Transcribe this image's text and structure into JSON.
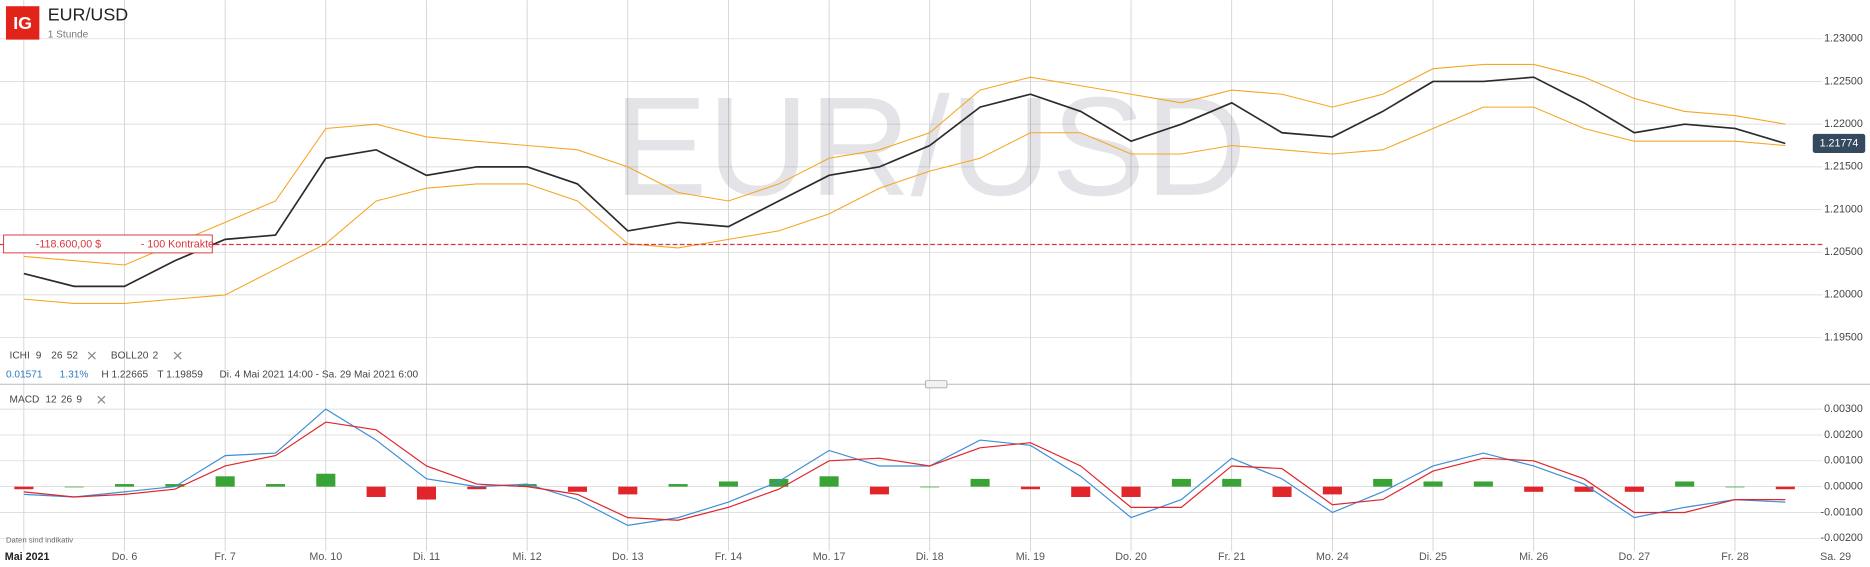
{
  "header": {
    "logo": "IG",
    "symbol": "EUR/USD",
    "interval": "1 Stunde",
    "watermark": "EUR/USD"
  },
  "indicators": [
    {
      "name": "ICHI",
      "params": [
        9,
        26,
        52
      ]
    },
    {
      "name": "BOLL",
      "params": [
        20,
        2
      ]
    }
  ],
  "stats": {
    "change": "0.01571",
    "change_pct": "1.31%",
    "high": "H 1.22665",
    "low": "T 1.19859",
    "range": "Di. 4 Mai 2021 14:00 - Sa. 29 Mai 2021 6:00"
  },
  "macd_indicator": {
    "name": "MACD",
    "params": [
      12,
      26,
      9
    ]
  },
  "footnote": "Daten sind indikativ",
  "chart_data": [
    {
      "type": "line",
      "series": [
        {
          "color": "#2b2b2b",
          "values": [
            1.2025,
            1.201,
            1.201,
            1.204,
            1.2065,
            1.207,
            1.216,
            1.217,
            1.214,
            1.215,
            1.215,
            1.213,
            1.2075,
            1.2085,
            1.208,
            1.211,
            1.214,
            1.215,
            1.2175,
            1.222,
            1.2235,
            1.2215,
            1.218,
            1.22,
            1.2225,
            1.219,
            1.2185,
            1.2215,
            1.225,
            1.225,
            1.2255,
            1.2225,
            1.219,
            1.22,
            1.2195,
            1.21774,
            null
          ]
        },
        {
          "color": "#f5a623",
          "values": [
            1.2045,
            1.204,
            1.2035,
            1.206,
            1.2085,
            1.211,
            1.2195,
            1.22,
            1.2185,
            1.218,
            1.2175,
            1.217,
            1.215,
            1.212,
            1.211,
            1.213,
            1.216,
            1.217,
            1.219,
            1.224,
            1.2255,
            1.2245,
            1.2235,
            1.2225,
            1.224,
            1.2235,
            1.222,
            1.2235,
            1.2265,
            1.227,
            1.227,
            1.2255,
            1.223,
            1.2215,
            1.221,
            1.22,
            null
          ]
        },
        {
          "color": "#f5a623",
          "values": [
            1.1995,
            1.199,
            1.199,
            1.1995,
            1.2,
            1.203,
            1.206,
            1.211,
            1.2125,
            1.213,
            1.213,
            1.211,
            1.206,
            1.2055,
            1.2065,
            1.2075,
            1.2095,
            1.2125,
            1.2145,
            1.216,
            1.219,
            1.219,
            1.2165,
            1.2165,
            1.2175,
            1.217,
            1.2165,
            1.217,
            1.2195,
            1.222,
            1.222,
            1.2195,
            1.218,
            1.218,
            1.218,
            1.2175,
            null
          ]
        }
      ],
      "ylim": [
        1.194,
        1.232
      ],
      "yticks": [
        {
          "value": 1.195,
          "label": "1.19500"
        },
        {
          "value": 1.2,
          "label": "1.20000"
        },
        {
          "value": 1.205,
          "label": "1.20500"
        },
        {
          "value": 1.21,
          "label": "1.21000"
        },
        {
          "value": 1.215,
          "label": "1.21500"
        },
        {
          "value": 1.22,
          "label": "1.22000"
        },
        {
          "value": 1.225,
          "label": "1.22500"
        },
        {
          "value": 1.23,
          "label": "1.23000"
        }
      ],
      "grid": true,
      "last_price": {
        "value": 1.21774,
        "label": "1.21774",
        "color": "#34495e"
      },
      "position": {
        "level": 1.2059,
        "pnl": "-118.600,00 $",
        "size": "- 100 Kontrakte",
        "color": "#d9363e"
      }
    },
    {
      "type": "macd",
      "categories": [
        "Mai 2021",
        null,
        "Do. 6",
        null,
        "Fr. 7",
        null,
        "Mo. 10",
        null,
        "Di. 11",
        null,
        "Mi. 12",
        null,
        "Do. 13",
        null,
        "Fr. 14",
        null,
        "Mo. 17",
        null,
        "Di. 18",
        null,
        "Mi. 19",
        null,
        "Do. 20",
        null,
        "Fr. 21",
        null,
        "Mo. 24",
        null,
        "Di. 25",
        null,
        "Mi. 26",
        null,
        "Do. 27",
        null,
        "Fr. 28",
        null,
        "Sa. 29"
      ],
      "histogram": {
        "up_color": "#3aa335",
        "down_color": "#e0252b",
        "values": [
          -0.0001,
          0,
          0.0001,
          0.0001,
          0.0004,
          0.0001,
          0.0005,
          -0.0004,
          -0.0005,
          -0.0001,
          0.0001,
          -0.0002,
          -0.0003,
          0.0001,
          0.0002,
          0.0003,
          0.0004,
          -0.0003,
          0,
          0.0003,
          -0.0001,
          -0.0004,
          -0.0004,
          0.0003,
          0.0003,
          -0.0004,
          -0.0003,
          0.0003,
          0.0002,
          0.0002,
          -0.0002,
          -0.0002,
          -0.0002,
          0.0002,
          0,
          -0.0001,
          null
        ]
      },
      "series": [
        {
          "color": "#3d8fd6",
          "values": [
            -0.0003,
            -0.0004,
            -0.0002,
            0,
            0.0012,
            0.0013,
            0.003,
            0.0018,
            0.0003,
            0,
            0.0001,
            -0.0005,
            -0.0015,
            -0.0012,
            -0.0006,
            0.0002,
            0.0014,
            0.0008,
            0.0008,
            0.0018,
            0.0016,
            0.0004,
            -0.0012,
            -0.0005,
            0.0011,
            0.0003,
            -0.001,
            -0.0002,
            0.0008,
            0.0013,
            0.0008,
            0.0001,
            -0.0012,
            -0.0008,
            -0.0005,
            -0.0006,
            null
          ]
        },
        {
          "color": "#e0252b",
          "values": [
            -0.0002,
            -0.0004,
            -0.0003,
            -0.0001,
            0.0008,
            0.0012,
            0.0025,
            0.0022,
            0.0008,
            0.0001,
            0,
            -0.0003,
            -0.0012,
            -0.0013,
            -0.0008,
            -0.0001,
            0.001,
            0.0011,
            0.0008,
            0.0015,
            0.0017,
            0.0008,
            -0.0008,
            -0.0008,
            0.0008,
            0.0007,
            -0.0007,
            -0.0005,
            0.0006,
            0.0011,
            0.001,
            0.0003,
            -0.001,
            -0.001,
            -0.0005,
            -0.0005,
            null
          ]
        }
      ],
      "ylim": [
        -0.0025,
        0.0035
      ],
      "yticks": [
        {
          "value": -0.002,
          "label": "-0.00200"
        },
        {
          "value": -0.001,
          "label": "-0.00100"
        },
        {
          "value": 0,
          "label": "0.00000"
        },
        {
          "value": 0.001,
          "label": "0.00100"
        },
        {
          "value": 0.002,
          "label": "0.00200"
        },
        {
          "value": 0.003,
          "label": "0.00300"
        }
      ],
      "grid": true
    }
  ]
}
